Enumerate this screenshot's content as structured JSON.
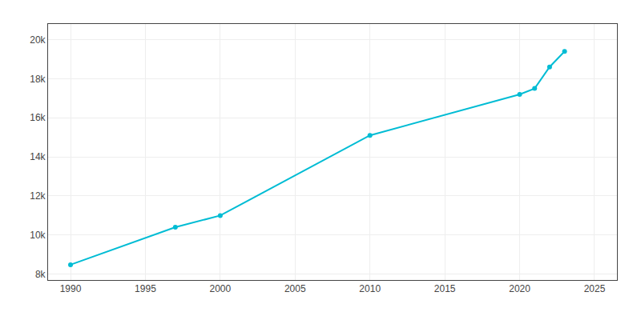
{
  "chart_data": {
    "type": "line",
    "x": [
      1990,
      1997,
      2000,
      2010,
      2020,
      2021,
      2022,
      2023
    ],
    "values": [
      8481,
      10400,
      11000,
      15100,
      17200,
      17500,
      18600,
      19400
    ],
    "color": "#00BCD4",
    "marker": "circle",
    "xlim": [
      1988.5,
      2026.5
    ],
    "ylim": [
      7700,
      20800
    ],
    "xticks": [
      1990,
      1995,
      2000,
      2005,
      2010,
      2015,
      2020,
      2025
    ],
    "yticks": [
      {
        "value": 8000,
        "label": "8k"
      },
      {
        "value": 10000,
        "label": "10k"
      },
      {
        "value": 12000,
        "label": "12k"
      },
      {
        "value": 14000,
        "label": "14k"
      },
      {
        "value": 16000,
        "label": "16k"
      },
      {
        "value": 18000,
        "label": "18k"
      },
      {
        "value": 20000,
        "label": "20k"
      }
    ],
    "grid": true
  }
}
